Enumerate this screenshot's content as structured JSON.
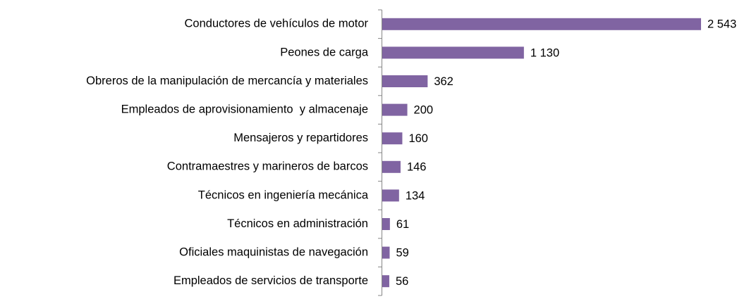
{
  "chart_data": {
    "type": "bar",
    "orientation": "horizontal",
    "categories": [
      "Conductores de vehículos de motor",
      "Peones de carga",
      "Obreros de la manipulación de mercancía y materiales",
      "Empleados de aprovisionamiento  y almacenaje",
      "Mensajeros y repartidores",
      "Contramaestres y marineros de barcos",
      "Técnicos en ingeniería mecánica",
      "Técnicos en administración",
      "Oficiales maquinistas de navegación",
      "Empleados de servicios de transporte"
    ],
    "values": [
      2543,
      1130,
      362,
      200,
      160,
      146,
      134,
      61,
      59,
      56
    ],
    "value_labels": [
      "2 543",
      "1 130",
      "362",
      "200",
      "160",
      "146",
      "134",
      "61",
      "59",
      "56"
    ],
    "color": "#8064a2"
  }
}
